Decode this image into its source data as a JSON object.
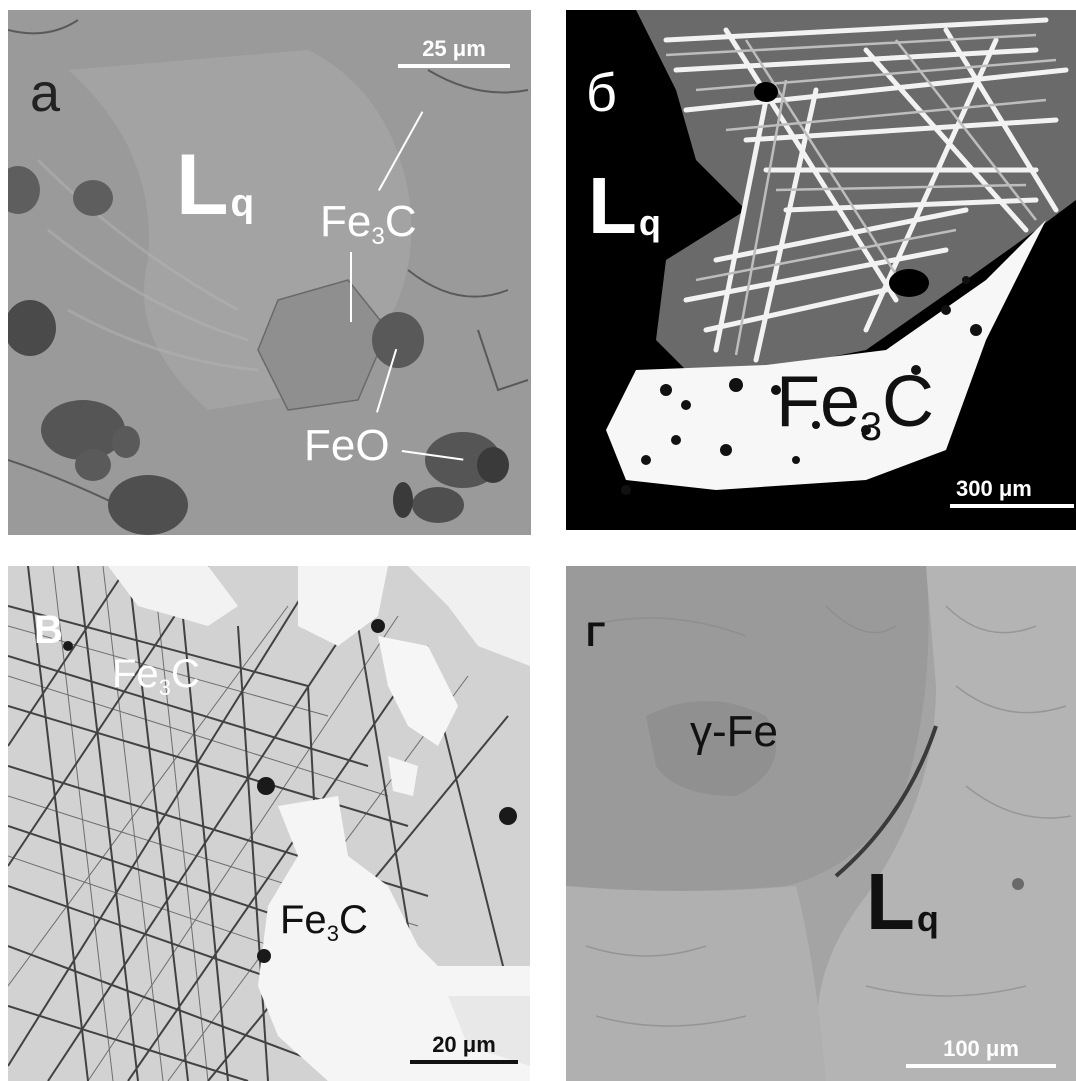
{
  "panels": {
    "a": {
      "letter": "а",
      "lq_main": "L",
      "lq_sub": "q",
      "fe3c_base": "Fe",
      "fe3c_sub": "3",
      "fe3c_tail": "C",
      "feo": "FeO",
      "scale": "25 μm"
    },
    "b": {
      "letter": "б",
      "lq_main": "L",
      "lq_sub": "q",
      "fe3c_base": "Fe",
      "fe3c_sub": "3",
      "fe3c_tail": "C",
      "scale": "300 μm"
    },
    "c": {
      "letter": "В",
      "fe3c1_base": "Fe",
      "fe3c1_sub": "3",
      "fe3c1_tail": "C",
      "fe3c2_base": "Fe",
      "fe3c2_sub": "3",
      "fe3c2_tail": "C",
      "scale": "20 μm"
    },
    "d": {
      "letter": "Г",
      "gamma": "γ-Fe",
      "lq_main": "L",
      "lq_sub": "q",
      "scale": "100 μm"
    }
  },
  "colors": {
    "panel_a_bg": "#9c9c9c",
    "panel_b_bg": "#000000",
    "panel_c_bg": "#dcdcdc",
    "panel_d_bg": "#a6a6a6"
  }
}
